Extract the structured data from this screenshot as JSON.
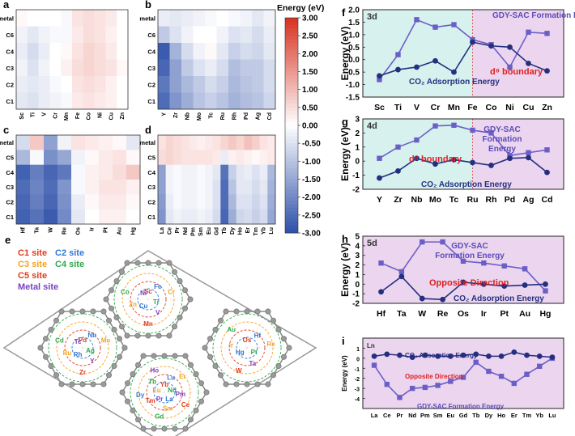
{
  "colors": {
    "pos": "#d7301f",
    "neg": "#2c4fa8",
    "line": "#24307f",
    "lineSq": "#6b5fc7",
    "shadeLeft": "#d7f1ee",
    "shadeRight": "#ecd5ee",
    "boundary": "#e05050",
    "annot": "#e02020"
  },
  "colorbar": {
    "title": "Energy (eV)",
    "ticks": [
      "3.00",
      "2.50",
      "2.00",
      "1.50",
      "1.00",
      "0.50",
      "0.00",
      "-0.50",
      "-1.00",
      "-1.50",
      "-2.00",
      "-2.50",
      "-3.00"
    ]
  },
  "heatmaps": [
    {
      "label": "a",
      "rows": [
        "metal",
        "C6",
        "C4",
        "C3",
        "C2",
        "C1"
      ],
      "cols": [
        "Sc",
        "Ti",
        "V",
        "Cr",
        "Mn",
        "Fe",
        "Co",
        "Ni",
        "Cu",
        "Zn"
      ],
      "values": [
        [
          0.1,
          0,
          0,
          0,
          -0.1,
          0.4,
          0.5,
          0.4,
          0.3,
          0
        ],
        [
          -0.2,
          -0.4,
          -0.2,
          -0.1,
          -0.1,
          0.3,
          0.5,
          0.4,
          0.2,
          0
        ],
        [
          -0.3,
          -0.6,
          -0.3,
          0,
          0.1,
          0.4,
          0.6,
          0.5,
          0.3,
          0
        ],
        [
          -0.2,
          -0.5,
          -0.2,
          0,
          0.2,
          0.5,
          0.6,
          0.5,
          0.4,
          0.1
        ],
        [
          -0.3,
          -0.4,
          -0.3,
          -0.1,
          0,
          0.4,
          0.5,
          0.4,
          0.2,
          0
        ],
        [
          -0.4,
          -0.5,
          -0.3,
          -0.2,
          -0.1,
          0.3,
          0.4,
          0.3,
          0.2,
          0
        ]
      ]
    },
    {
      "label": "b",
      "rows": [
        "metal",
        "C6",
        "C4",
        "C3",
        "C2",
        "C1"
      ],
      "cols": [
        "Y",
        "Zr",
        "Nb",
        "Mo",
        "Tc",
        "Ru",
        "Rh",
        "Pd",
        "Ag",
        "Cd"
      ],
      "values": [
        [
          -0.3,
          -0.4,
          -0.3,
          -0.2,
          -0.1,
          0,
          -0.1,
          -0.2,
          -0.4,
          -0.2
        ],
        [
          -0.9,
          -0.5,
          -0.2,
          0,
          0,
          -0.2,
          -0.5,
          -0.4,
          -0.6,
          -0.3
        ],
        [
          -2.8,
          -1.3,
          -0.6,
          -0.2,
          0.1,
          -0.4,
          -0.8,
          -0.6,
          -0.7,
          -0.4
        ],
        [
          -2.6,
          -1.6,
          -0.9,
          -0.5,
          -0.3,
          -0.6,
          -1.1,
          -0.9,
          -0.9,
          -0.6
        ],
        [
          -2.3,
          -1.6,
          -1.2,
          -0.9,
          -0.6,
          -0.8,
          -1.2,
          -1.0,
          -0.9,
          -0.6
        ],
        [
          -2.5,
          -1.8,
          -1.4,
          -1.0,
          -0.8,
          -1.0,
          -1.3,
          -1.1,
          -1.0,
          -0.7
        ]
      ]
    },
    {
      "label": "c",
      "rows": [
        "metal",
        "C5",
        "C4",
        "C3",
        "C2",
        "C1"
      ],
      "cols": [
        "Hf",
        "Ta",
        "W",
        "Re",
        "Os",
        "Ir",
        "Pt",
        "Au",
        "Hg"
      ],
      "values": [
        [
          -0.6,
          0.8,
          -1.6,
          -0.2,
          0.4,
          0.3,
          0.2,
          0.1,
          -0.4
        ],
        [
          -1.2,
          -0.1,
          -1.9,
          -1.5,
          -0.2,
          0.1,
          0.3,
          0.4,
          0.1
        ],
        [
          -2.7,
          -2.2,
          -2.6,
          -2.3,
          -0.1,
          0.2,
          0.3,
          0.5,
          0.8
        ],
        [
          -2.5,
          -2.1,
          -2.5,
          -1.8,
          -0.1,
          0.2,
          0.4,
          0.4,
          0.2
        ],
        [
          -2.6,
          -2.2,
          -2.6,
          -1.9,
          -0.3,
          0.1,
          0.3,
          0.3,
          0.1
        ],
        [
          -2.7,
          -2.4,
          -2.8,
          -2.0,
          -0.4,
          0,
          0.2,
          0.2,
          0
        ]
      ]
    },
    {
      "label": "d",
      "rows": [
        "metal",
        "C5",
        "C4",
        "C3",
        "C2",
        "C1"
      ],
      "cols": [
        "La",
        "Ce",
        "Pr",
        "Nd",
        "Pm",
        "Sm",
        "Eu",
        "Gd",
        "Tb",
        "Dy",
        "Ho",
        "Er",
        "Tm",
        "Yb",
        "Lu"
      ],
      "values": [
        [
          0.4,
          0.6,
          0.5,
          0.4,
          0.3,
          0.2,
          0.3,
          0.4,
          0.6,
          0.8,
          0.6,
          0.9,
          0.7,
          0.4,
          0.3
        ],
        [
          0.5,
          0.6,
          0.5,
          0.4,
          0.4,
          0.4,
          0.4,
          0.3,
          -0.3,
          0.2,
          0.3,
          0.2,
          0.1,
          0.2,
          0.3
        ],
        [
          -1.6,
          -0.2,
          -0.1,
          -0.2,
          -0.2,
          -0.1,
          -0.2,
          -0.4,
          -2.4,
          -0.8,
          -0.4,
          -0.3,
          -0.5,
          -0.3,
          -1.2
        ],
        [
          -1.6,
          -0.2,
          -0.1,
          -0.2,
          -0.2,
          -0.1,
          -0.2,
          -0.5,
          -2.5,
          -1.0,
          -0.4,
          -0.4,
          -0.6,
          -0.4,
          -1.3
        ],
        [
          -1.7,
          -0.3,
          -0.1,
          -0.2,
          -0.2,
          -0.1,
          -0.2,
          -0.5,
          -2.5,
          -1.2,
          -0.5,
          -0.5,
          -0.7,
          -0.5,
          -1.4
        ],
        [
          -1.8,
          -0.4,
          -0.2,
          -0.3,
          -0.3,
          -0.2,
          -0.3,
          -0.6,
          -2.6,
          -1.4,
          -0.7,
          -0.6,
          -0.8,
          -0.6,
          -1.5
        ]
      ]
    }
  ],
  "panel_e": {
    "label": "e",
    "legend": [
      {
        "text": "C1 site",
        "color": "#e03c1e"
      },
      {
        "text": "C2 site",
        "color": "#2f78d6"
      },
      {
        "text": "C3 site",
        "color": "#f2a424"
      },
      {
        "text": "C4 site",
        "color": "#2ea84a"
      },
      {
        "text": "C5 site",
        "color": "#e03c1e"
      },
      {
        "text": "Metal site",
        "color": "#7a3fc4"
      }
    ],
    "rings": [
      {
        "elems": [
          "Sc",
          "Fe",
          "Cr",
          "Ti",
          "V",
          "Mn",
          "Cu",
          "Zn",
          "Co",
          "Ni"
        ]
      },
      {
        "elems": [
          "Pd",
          "Nb",
          "Mo",
          "Ag",
          "Y",
          "Zr",
          "Rh",
          "Ru",
          "Cd",
          "Tc"
        ]
      },
      {
        "elems": [
          "Os",
          "Hf",
          "Re",
          "Pt",
          "Ta",
          "W",
          "Hg",
          "Ir",
          "Au"
        ]
      },
      {
        "elems": [
          "Yb",
          "Lu",
          "Er",
          "Nd",
          "Pm",
          "Ce",
          "La",
          "Sm",
          "Gd",
          "Pr",
          "Tm",
          "Dy",
          "Eu",
          "Tb",
          "Ho"
        ]
      }
    ]
  },
  "chart_data": [
    {
      "panel": "f",
      "type": "line",
      "tag": "3d",
      "x": [
        "Sc",
        "Ti",
        "V",
        "Cr",
        "Mn",
        "Fe",
        "Co",
        "Ni",
        "Cu",
        "Zn"
      ],
      "ylabel": "Energy (eV)",
      "ylim": [
        -1.5,
        2.0
      ],
      "yticks": [
        "-1.5",
        "-1.0",
        "-0.5",
        "0.0",
        "0.5",
        "1.0",
        "1.5",
        "2.0"
      ],
      "boundary_index": 5,
      "series": [
        {
          "name": "GDY-SAC Formation Energy",
          "marker": "square",
          "values": [
            -0.8,
            0.2,
            1.6,
            1.3,
            1.4,
            0.8,
            0.6,
            -0.3,
            1.1,
            1.05
          ]
        },
        {
          "name": "CO2 Adsorption Energy",
          "marker": "circle",
          "values": [
            -0.65,
            -0.4,
            -0.3,
            -0.05,
            -0.5,
            0.7,
            0.55,
            0.5,
            -0.15,
            -0.45
          ]
        }
      ],
      "annotations": [
        {
          "text": "GDY-SAC Formation Energy"
        },
        {
          "text": "d⁸ boundary"
        },
        {
          "text": "CO₂ Adsorption Energy"
        }
      ]
    },
    {
      "panel": "g",
      "type": "line",
      "tag": "4d",
      "x": [
        "Y",
        "Zr",
        "Nb",
        "Mo",
        "Tc",
        "Ru",
        "Rh",
        "Pd",
        "Ag",
        "Cd"
      ],
      "ylabel": "Energy (eV)",
      "ylim": [
        -2,
        3
      ],
      "yticks": [
        "-2",
        "-1",
        "0",
        "1",
        "2",
        "3"
      ],
      "boundary_index": 5,
      "series": [
        {
          "name": "GDY-SAC Formation Energy",
          "marker": "square",
          "values": [
            0.2,
            1.0,
            1.5,
            2.5,
            2.55,
            2.2,
            2.0,
            0.4,
            0.6,
            0.8
          ]
        },
        {
          "name": "CO2 Adsorption Energy",
          "marker": "circle",
          "values": [
            -1.2,
            -0.7,
            0.2,
            -0.2,
            0.1,
            -0.1,
            -0.3,
            0.2,
            0.25,
            -0.8
          ]
        }
      ],
      "annotations": [
        {
          "text": "GDY-SAC Formation Energy"
        },
        {
          "text": "d⁸ boundary"
        },
        {
          "text": "CO₂ Adsorption Energy"
        }
      ]
    },
    {
      "panel": "h",
      "type": "line",
      "tag": "5d",
      "x": [
        "Hf",
        "Ta",
        "W",
        "Re",
        "Os",
        "Ir",
        "Pt",
        "Au",
        "Hg"
      ],
      "ylabel": "Energy (eV)",
      "ylim": [
        -2,
        5
      ],
      "yticks": [
        "-2",
        "-1",
        "0",
        "1",
        "2",
        "3",
        "4",
        "5"
      ],
      "series": [
        {
          "name": "GDY-SAC Formation Energy",
          "marker": "square",
          "values": [
            2.2,
            1.3,
            4.4,
            4.4,
            2.4,
            2.2,
            1.9,
            1.6,
            -0.7
          ]
        },
        {
          "name": "CO2 Adsorption Energy",
          "marker": "circle",
          "values": [
            -0.8,
            0.8,
            -1.5,
            -1.6,
            0.2,
            0.0,
            -0.2,
            -0.1,
            0.0
          ]
        }
      ],
      "annotations": [
        {
          "text": "GDY-SAC Formation Energy"
        },
        {
          "text": "Opposite Direction"
        },
        {
          "text": "CO₂ Adsorption Energy"
        }
      ]
    },
    {
      "panel": "i",
      "type": "line",
      "tag": "Ln",
      "x": [
        "La",
        "Ce",
        "Pr",
        "Nd",
        "Pm",
        "Sm",
        "Eu",
        "Gd",
        "Tb",
        "Dy",
        "Ho",
        "Er",
        "Tm",
        "Yb",
        "Lu"
      ],
      "ylabel": "Energy (eV)",
      "ylim": [
        -5,
        2
      ],
      "yticks": [
        "-4",
        "-3",
        "-2",
        "-1",
        "0",
        "1"
      ],
      "series": [
        {
          "name": "GDY-SAC Formation Energy",
          "marker": "square",
          "values": [
            -0.7,
            -2.6,
            -3.9,
            -3.0,
            -2.9,
            -2.7,
            -2.3,
            -1.9,
            -0.4,
            -1.3,
            -1.8,
            -2.5,
            -1.6,
            -0.8,
            0.0
          ]
        },
        {
          "name": "CO2 Adsorption Energy",
          "marker": "circle",
          "values": [
            0.2,
            0.4,
            0.3,
            0.1,
            0.3,
            0.2,
            0.2,
            0.3,
            0.4,
            0.2,
            0.2,
            0.6,
            0.3,
            0.2,
            0.1
          ]
        }
      ],
      "annotations": [
        {
          "text": "CO₂ Adsorption Energy"
        },
        {
          "text": "Opposite Direction"
        },
        {
          "text": "GDY-SAC Formation Energy"
        }
      ]
    }
  ]
}
